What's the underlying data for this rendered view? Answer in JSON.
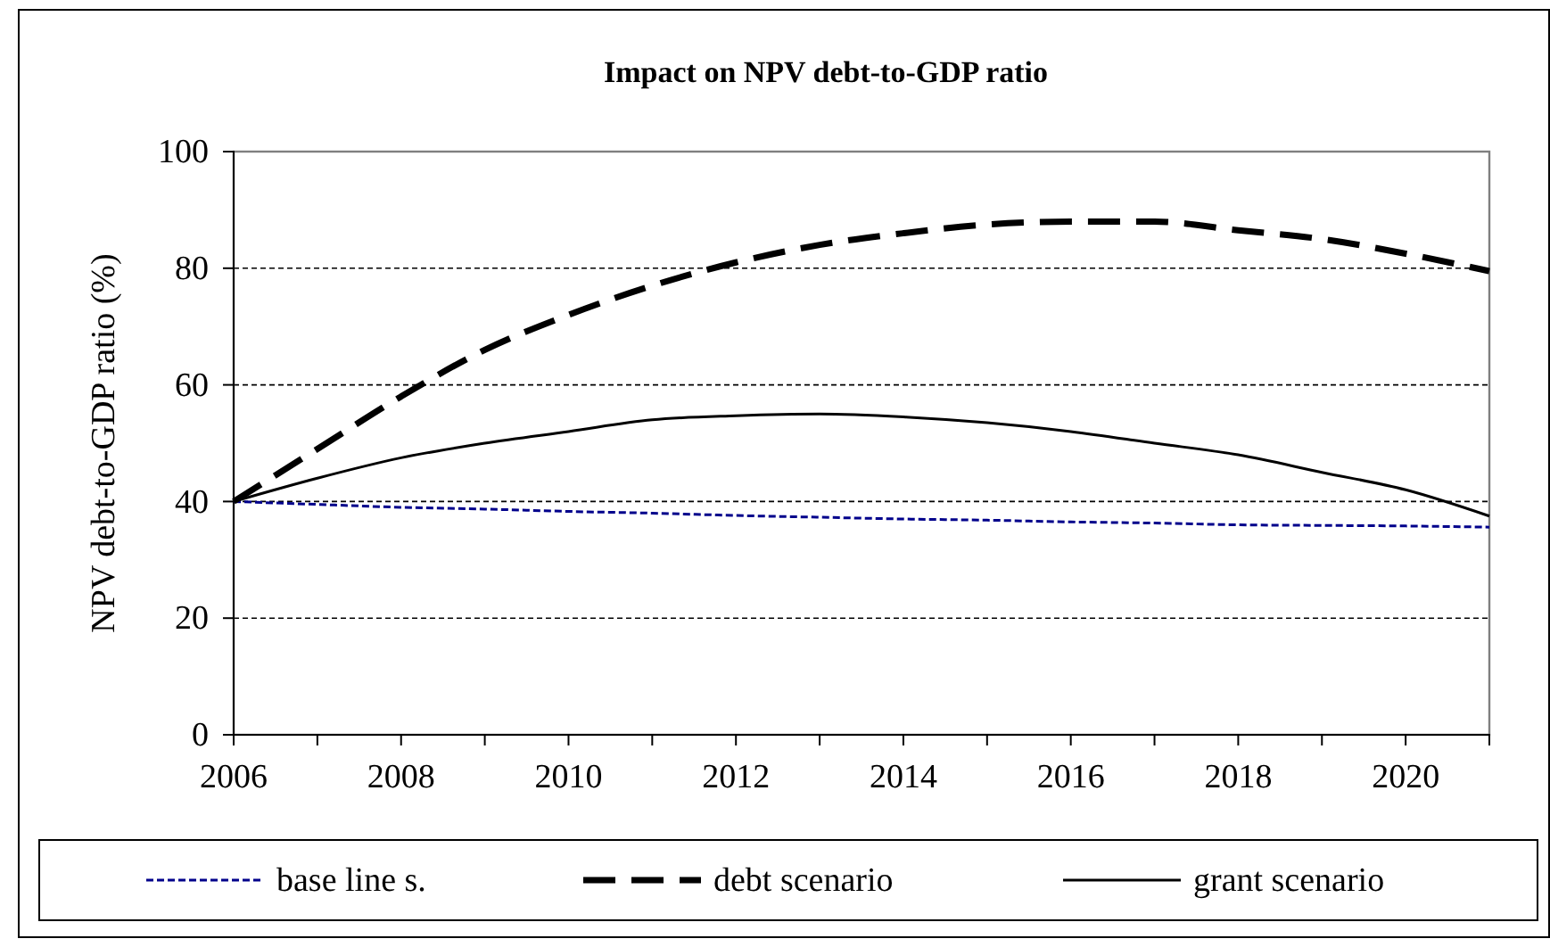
{
  "chart_data": {
    "type": "line",
    "title": "Impact on NPV debt-to-GDP ratio",
    "ylabel": "NPV debt-to-GDP ratio (%)",
    "x": [
      2006,
      2007,
      2008,
      2009,
      2010,
      2011,
      2012,
      2013,
      2014,
      2015,
      2016,
      2017,
      2018,
      2019,
      2020,
      2021
    ],
    "series": [
      {
        "name": "base line s.",
        "color": "#00008b",
        "line_style": "dotted",
        "values": [
          40,
          39.5,
          39,
          38.7,
          38.3,
          38,
          37.6,
          37.3,
          37,
          36.8,
          36.5,
          36.3,
          36,
          35.9,
          35.8,
          35.6
        ]
      },
      {
        "name": "debt scenario",
        "color": "#000000",
        "line_style": "dashed",
        "values": [
          40,
          49,
          58,
          66,
          72,
          77,
          81,
          84,
          86,
          87.5,
          88,
          88,
          86.5,
          85,
          82.5,
          79.5
        ]
      },
      {
        "name": "grant scenario",
        "color": "#000000",
        "line_style": "solid",
        "values": [
          40,
          44,
          47.5,
          50,
          52,
          54,
          54.7,
          55,
          54.5,
          53.5,
          52,
          50,
          48,
          45,
          42,
          37.5
        ]
      }
    ],
    "xlim": [
      2006,
      2021
    ],
    "xticks": [
      2006,
      {
        "value": 2007,
        "label": null
      },
      2008,
      {
        "value": 2009,
        "label": null
      },
      2010,
      {
        "value": 2011,
        "label": null
      },
      2012,
      {
        "value": 2013,
        "label": null
      },
      2014,
      {
        "value": 2015,
        "label": null
      },
      2016,
      {
        "value": 2017,
        "label": null
      },
      2018,
      {
        "value": 2019,
        "label": null
      },
      2020,
      {
        "value": 2021,
        "label": null
      }
    ],
    "ylim": [
      0,
      100
    ],
    "yticks": [
      0,
      20,
      40,
      60,
      80,
      100
    ],
    "grid": "y",
    "legend": "bottom",
    "marker": "none"
  }
}
